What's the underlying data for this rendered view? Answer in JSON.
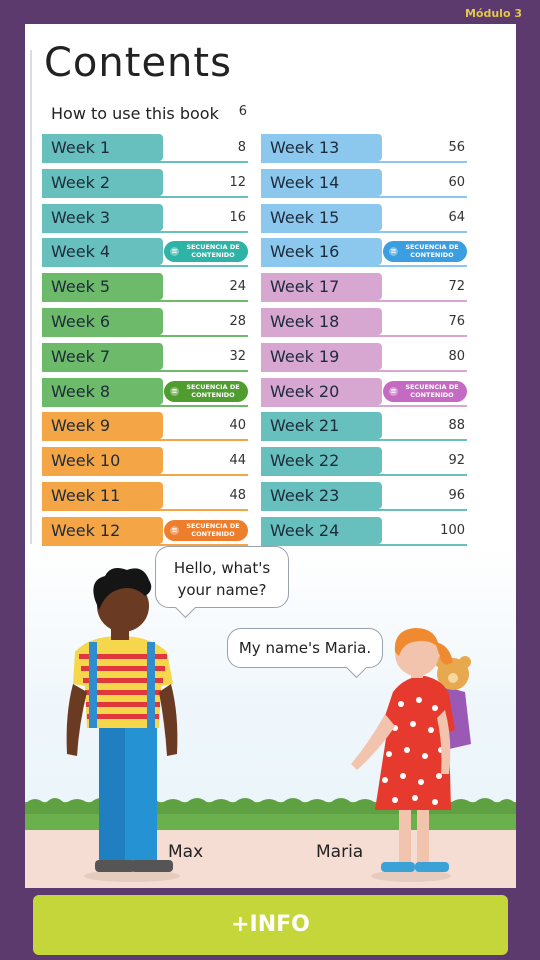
{
  "header": {
    "module": "Módulo 3"
  },
  "page": {
    "title": "Contents",
    "howto": {
      "label": "How to use this book",
      "page": "6"
    }
  },
  "weeks_left": [
    {
      "label": "Week 1",
      "page": "8",
      "color": "#67c0be"
    },
    {
      "label": "Week 2",
      "page": "12",
      "color": "#67c0be"
    },
    {
      "label": "Week 3",
      "page": "16",
      "color": "#67c0be"
    },
    {
      "label": "Week 4",
      "page": "",
      "color": "#67c0be",
      "badge": "SECUENCIA DE CONTENIDO",
      "badge_color": "#2eb3a6"
    },
    {
      "label": "Week 5",
      "page": "24",
      "color": "#6dbb6a"
    },
    {
      "label": "Week 6",
      "page": "28",
      "color": "#6dbb6a"
    },
    {
      "label": "Week 7",
      "page": "32",
      "color": "#6dbb6a"
    },
    {
      "label": "Week 8",
      "page": "",
      "color": "#6dbb6a",
      "badge": "SECUENCIA DE CONTENIDO",
      "badge_color": "#4e9d2e"
    },
    {
      "label": "Week 9",
      "page": "40",
      "color": "#f4a646"
    },
    {
      "label": "Week 10",
      "page": "44",
      "color": "#f4a646"
    },
    {
      "label": "Week 11",
      "page": "48",
      "color": "#f4a646"
    },
    {
      "label": "Week 12",
      "page": "",
      "color": "#f4a646",
      "badge": "SECUENCIA DE CONTENIDO",
      "badge_color": "#ec7e2e"
    }
  ],
  "weeks_right": [
    {
      "label": "Week 13",
      "page": "56",
      "color": "#8cc8ee"
    },
    {
      "label": "Week 14",
      "page": "60",
      "color": "#8cc8ee"
    },
    {
      "label": "Week 15",
      "page": "64",
      "color": "#8cc8ee"
    },
    {
      "label": "Week 16",
      "page": "",
      "color": "#8cc8ee",
      "badge": "SECUENCIA DE CONTENIDO",
      "badge_color": "#3a9ee0"
    },
    {
      "label": "Week 17",
      "page": "72",
      "color": "#d7a7d2"
    },
    {
      "label": "Week 18",
      "page": "76",
      "color": "#d7a7d2"
    },
    {
      "label": "Week 19",
      "page": "80",
      "color": "#d7a7d2"
    },
    {
      "label": "Week 20",
      "page": "",
      "color": "#d7a7d2",
      "badge": "SECUENCIA DE CONTENIDO",
      "badge_color": "#c46ac2"
    },
    {
      "label": "Week 21",
      "page": "88",
      "color": "#67c0be"
    },
    {
      "label": "Week 22",
      "page": "92",
      "color": "#67c0be"
    },
    {
      "label": "Week 23",
      "page": "96",
      "color": "#67c0be"
    },
    {
      "label": "Week 24",
      "page": "100",
      "color": "#67c0be"
    }
  ],
  "scene": {
    "bubble_max": "Hello, what's your name?",
    "bubble_maria": "My name's Maria.",
    "name_max": "Max",
    "name_maria": "Maria"
  },
  "footer": {
    "info_button": "+INFO"
  }
}
